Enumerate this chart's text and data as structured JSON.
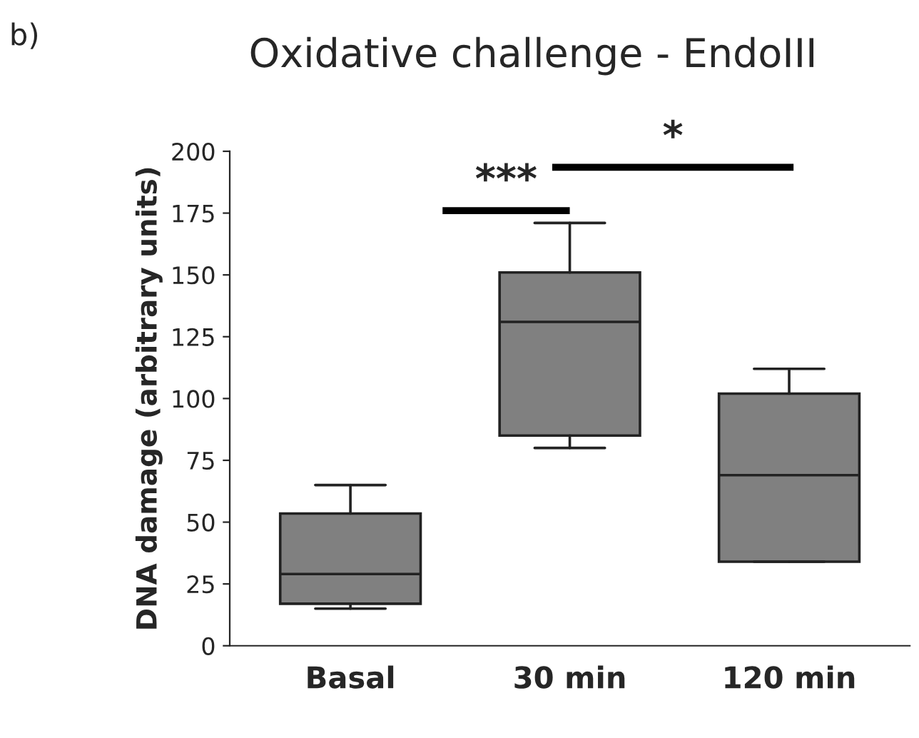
{
  "chart_data": {
    "type": "box",
    "title": "Oxidative challenge - EndoIII",
    "ylabel": "DNA damage (arbitrary units)",
    "categories": [
      "Basal",
      "30 min",
      "120 min"
    ],
    "color": "#808080",
    "boxes": [
      {
        "low": 15,
        "q1": 17,
        "median": 29,
        "q3": 53.5,
        "high": 65
      },
      {
        "low": 80,
        "q1": 85,
        "median": 131,
        "q3": 151,
        "high": 171
      },
      {
        "low": 34,
        "q1": 34,
        "median": 69,
        "q3": 102,
        "high": 112
      }
    ],
    "ylim": [
      0,
      200
    ],
    "yticks": [
      0,
      25,
      50,
      75,
      100,
      125,
      150,
      175,
      200
    ],
    "grid": false,
    "legend": false,
    "annotations": [
      "b)",
      "***",
      "*"
    ]
  }
}
